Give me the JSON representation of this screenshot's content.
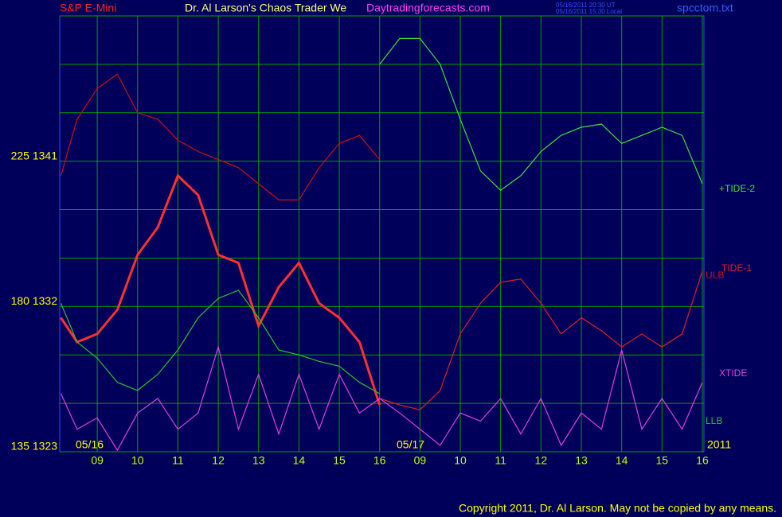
{
  "chart_data": {
    "type": "line",
    "title": "S&P E-Mini",
    "subtitle": "Dr. Al Larson's Chaos Trader We",
    "site": "Daytradingforecasts.com",
    "timestamp_ut": "05/16/2011 20:30 UT",
    "timestamp_local": "05/16/2011 15:30 Local",
    "file": "spcctom.txt",
    "copyright": "Copyright 2011, Dr. Al Larson. May not be copied by any means.",
    "date_labels": [
      "05/16",
      "05/17",
      "2011"
    ],
    "x": [
      8.1,
      8.5,
      9,
      9.5,
      10,
      10.5,
      11,
      11.5,
      12,
      12.5,
      13,
      13.5,
      14,
      14.5,
      15,
      15.5,
      16,
      16.5,
      17,
      17.5,
      18,
      18.5,
      19,
      19.5,
      20,
      20.5,
      21,
      21.5,
      22,
      22.5,
      23,
      23.5,
      24
    ],
    "xlim": [
      8.07,
      24.04
    ],
    "xticks": [
      {
        "value": 9,
        "label": "09"
      },
      10,
      11,
      12,
      13,
      14,
      15,
      16,
      {
        "value": 17,
        "label": "09"
      },
      {
        "value": 18,
        "label": "10"
      },
      {
        "value": 19,
        "label": "11"
      },
      {
        "value": 20,
        "label": "12"
      },
      {
        "value": 21,
        "label": "13"
      },
      {
        "value": 22,
        "label": "14"
      },
      {
        "value": 23,
        "label": "15"
      },
      {
        "value": 24,
        "label": "16"
      }
    ],
    "ylim": [
      1323,
      1350
    ],
    "yticks": [
      {
        "value": 1341,
        "label": "225  1341"
      },
      {
        "value": 1332,
        "label": "180  1332"
      },
      {
        "value": 1323,
        "label": "135  1323"
      }
    ],
    "ygrid": [
      1326,
      1329,
      1335,
      1338,
      1344,
      1347,
      1350
    ],
    "grid": true,
    "series": [
      {
        "color": "#ff3030",
        "values": [
          1331.3,
          1329.8,
          1330.3,
          1331.8,
          1335.2,
          1336.9,
          1340.1,
          1338.9,
          1335.2,
          1334.7,
          1330.8,
          1333.2,
          1334.7,
          1332.2,
          1331.3,
          1329.8,
          1325.9,
          null,
          null,
          null,
          null,
          null,
          null,
          null,
          null,
          null,
          null,
          null,
          null,
          null,
          null,
          null,
          null
        ]
      },
      {
        "name": "+TIDE-2",
        "color": "#40e040",
        "values": [
          null,
          null,
          null,
          null,
          null,
          null,
          null,
          null,
          null,
          null,
          null,
          null,
          null,
          null,
          null,
          null,
          1347.0,
          1348.6,
          1348.6,
          1347.0,
          1343.6,
          1340.4,
          1339.2,
          1340.1,
          1341.6,
          1342.6,
          1343.1,
          1343.3,
          1342.1,
          1342.6,
          1343.1,
          1342.6,
          1339.6
        ]
      },
      {
        "name": "TIDE-1",
        "color": "#e02020",
        "values": [
          null,
          null,
          null,
          null,
          null,
          null,
          null,
          null,
          null,
          null,
          null,
          null,
          null,
          null,
          null,
          null,
          1326.3,
          1325.9,
          1325.6,
          1326.8,
          1330.3,
          1332.2,
          1333.5,
          1333.7,
          1332.2,
          1330.3,
          1331.3,
          1330.5,
          1329.5,
          1330.3,
          1329.5,
          1330.3,
          1334.2
        ]
      },
      {
        "name": "ULB",
        "color": "#cc1010",
        "values": [
          1340.1,
          1343.6,
          1345.5,
          1346.4,
          1344.0,
          1343.6,
          1342.3,
          1341.6,
          1341.1,
          1340.6,
          1339.6,
          1338.6,
          1338.6,
          1340.6,
          1342.1,
          1342.6,
          1341.1,
          null,
          null,
          null,
          null,
          null,
          null,
          null,
          null,
          null,
          null,
          null,
          null,
          null,
          null,
          null,
          null
        ]
      },
      {
        "name": "LLB",
        "color": "#30c030",
        "values": [
          1332.2,
          1329.8,
          1328.8,
          1327.3,
          1326.8,
          1327.8,
          1329.3,
          1331.3,
          1332.5,
          1333.0,
          1331.3,
          1329.3,
          1329.0,
          1328.6,
          1328.3,
          1327.3,
          1326.6,
          null,
          null,
          null,
          null,
          null,
          null,
          null,
          null,
          null,
          null,
          null,
          null,
          null,
          null,
          null,
          null
        ]
      },
      {
        "name": "XTIDE",
        "color": "#e040e0",
        "values": [
          1326.6,
          1324.4,
          1325.1,
          1323.1,
          1325.4,
          1326.3,
          1324.4,
          1325.4,
          1329.5,
          1324.4,
          1327.8,
          1324.1,
          1327.8,
          1324.4,
          1327.8,
          1325.4,
          1326.3,
          1325.4,
          1324.4,
          1323.4,
          1325.4,
          1324.9,
          1326.3,
          1324.1,
          1326.3,
          1323.4,
          1325.4,
          1324.4,
          1329.3,
          1324.4,
          1326.3,
          1324.4,
          1327.3
        ]
      }
    ]
  }
}
